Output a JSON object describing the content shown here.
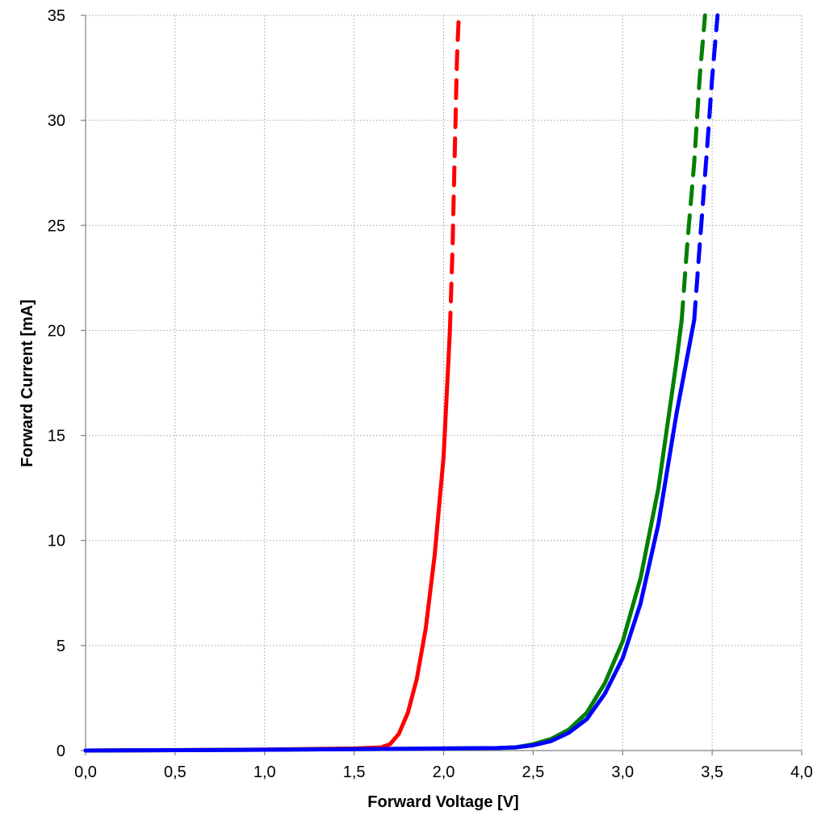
{
  "chart_data": {
    "type": "line",
    "title": "",
    "xlabel": "Forward Voltage [V]",
    "ylabel": "Forward Current [mA]",
    "xlim": [
      0,
      4
    ],
    "ylim": [
      0,
      35
    ],
    "x_ticks": [
      "0,0",
      "0,5",
      "1,0",
      "1,5",
      "2,0",
      "2,5",
      "3,0",
      "3,5",
      "4,0"
    ],
    "y_ticks": [
      "0",
      "5",
      "10",
      "15",
      "20",
      "25",
      "30",
      "35"
    ],
    "grid": true,
    "legend": "none",
    "series": [
      {
        "color": "#ff0000",
        "solid": [
          [
            0,
            0
          ],
          [
            0.5,
            0.02
          ],
          [
            1.0,
            0.05
          ],
          [
            1.5,
            0.1
          ],
          [
            1.65,
            0.15
          ],
          [
            1.7,
            0.3
          ],
          [
            1.75,
            0.8
          ],
          [
            1.8,
            1.8
          ],
          [
            1.85,
            3.4
          ],
          [
            1.9,
            5.8
          ],
          [
            1.95,
            9.3
          ],
          [
            2.0,
            14.0
          ],
          [
            2.035,
            20.0
          ]
        ],
        "dashed": [
          [
            2.035,
            20.0
          ],
          [
            2.05,
            24.0
          ],
          [
            2.065,
            29.5
          ],
          [
            2.075,
            33.0
          ],
          [
            2.085,
            35.0
          ]
        ]
      },
      {
        "color": "#008000",
        "solid": [
          [
            0,
            0
          ],
          [
            0.5,
            0.02
          ],
          [
            1.0,
            0.04
          ],
          [
            1.5,
            0.07
          ],
          [
            2.0,
            0.1
          ],
          [
            2.3,
            0.12
          ],
          [
            2.4,
            0.15
          ],
          [
            2.5,
            0.3
          ],
          [
            2.6,
            0.55
          ],
          [
            2.7,
            1.0
          ],
          [
            2.8,
            1.8
          ],
          [
            2.9,
            3.2
          ],
          [
            3.0,
            5.2
          ],
          [
            3.1,
            8.2
          ],
          [
            3.2,
            12.5
          ],
          [
            3.3,
            18.5
          ],
          [
            3.33,
            20.5
          ]
        ],
        "dashed": [
          [
            3.33,
            20.5
          ],
          [
            3.36,
            24.0
          ],
          [
            3.4,
            28.0
          ],
          [
            3.43,
            32.0
          ],
          [
            3.46,
            35.0
          ]
        ]
      },
      {
        "color": "#0000ff",
        "solid": [
          [
            0,
            0
          ],
          [
            0.5,
            0.02
          ],
          [
            1.0,
            0.04
          ],
          [
            1.5,
            0.07
          ],
          [
            2.0,
            0.1
          ],
          [
            2.3,
            0.12
          ],
          [
            2.4,
            0.15
          ],
          [
            2.5,
            0.25
          ],
          [
            2.6,
            0.45
          ],
          [
            2.7,
            0.85
          ],
          [
            2.8,
            1.5
          ],
          [
            2.9,
            2.7
          ],
          [
            3.0,
            4.4
          ],
          [
            3.1,
            7.0
          ],
          [
            3.2,
            10.8
          ],
          [
            3.3,
            16.0
          ],
          [
            3.4,
            20.5
          ]
        ],
        "dashed": [
          [
            3.4,
            20.5
          ],
          [
            3.43,
            24.0
          ],
          [
            3.47,
            28.5
          ],
          [
            3.5,
            32.0
          ],
          [
            3.53,
            35.0
          ]
        ]
      }
    ]
  }
}
